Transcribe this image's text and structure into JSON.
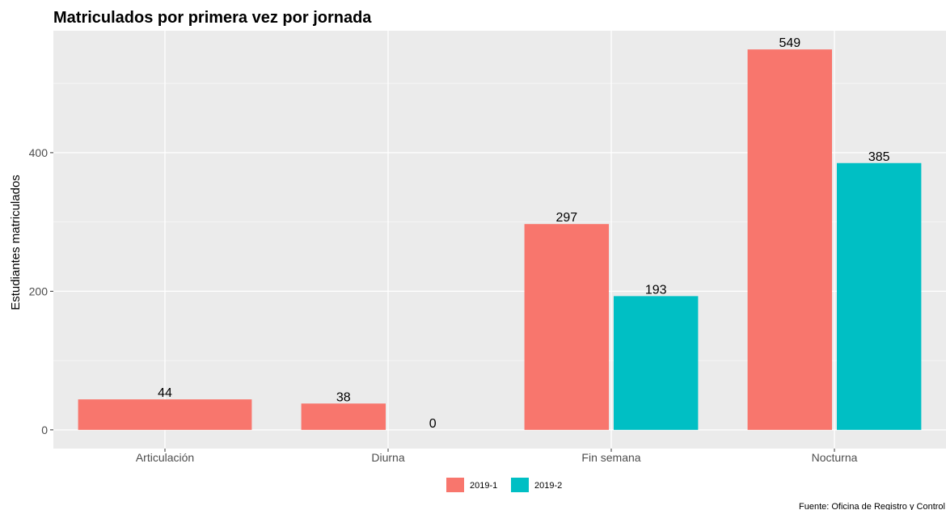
{
  "chart_data": {
    "type": "bar",
    "title": "Matriculados por primera vez por jornada",
    "xlabel": "",
    "ylabel": "Estudiantes matriculados",
    "categories": [
      "Articulación",
      "Diurna",
      "Fin semana",
      "Nocturna"
    ],
    "series": [
      {
        "name": "2019-1",
        "color": "#F8766D",
        "values": [
          44,
          38,
          297,
          549
        ],
        "labels": [
          "44",
          "38",
          "297",
          "549"
        ]
      },
      {
        "name": "2019-2",
        "color": "#00BFC4",
        "values": [
          null,
          0,
          193,
          385
        ],
        "labels": [
          "",
          "0",
          "193",
          "385"
        ]
      }
    ],
    "yticks": [
      0,
      200,
      400
    ],
    "ylim": [
      -27,
      576
    ],
    "grid": true,
    "legend_position": "bottom",
    "caption": "Fuente: Oficina de Registro y Control",
    "colors": {
      "panel_background": "#EBEBEB",
      "grid_major": "#FFFFFF",
      "grid_minor": "#F5F5F5"
    }
  }
}
